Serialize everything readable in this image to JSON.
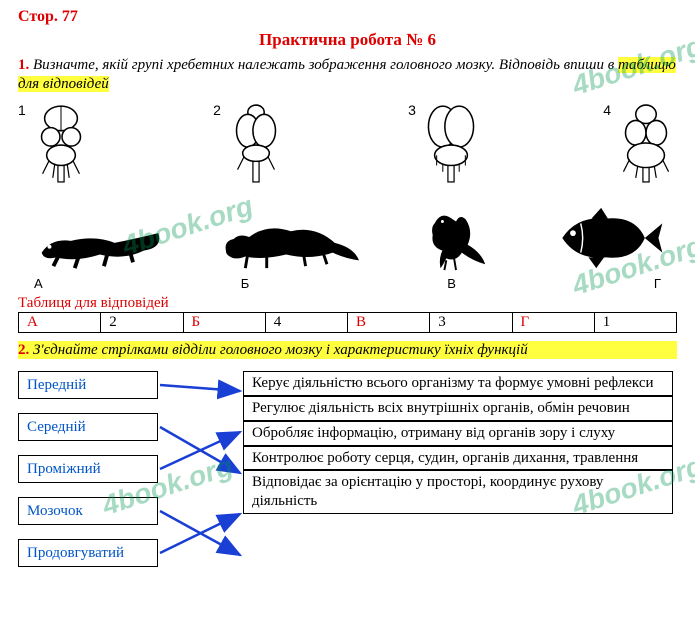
{
  "page_label": "Стор. 77",
  "title": "Практична робота № 6",
  "task1": {
    "num": "1.",
    "text_before": "Визначте, якій групі хребетних належать зображення головного мозку. Відповідь впиши в ",
    "text_hl": "таблицю для відповідей"
  },
  "brains": [
    {
      "label": "1"
    },
    {
      "label": "2"
    },
    {
      "label": "3"
    },
    {
      "label": "4"
    }
  ],
  "animal_labels": [
    "А",
    "Б",
    "В",
    "Г"
  ],
  "table_caption": "Таблиця для відповідей",
  "answer_table": [
    {
      "letter": "А",
      "value": "2"
    },
    {
      "letter": "Б",
      "value": "4"
    },
    {
      "letter": "В",
      "value": "3"
    },
    {
      "letter": "Г",
      "value": "1"
    }
  ],
  "task2": {
    "num": "2.",
    "text": "З'єднайте стрілками відділи головного мозку і характеристику їхніх функцій"
  },
  "left_items": [
    "Передній",
    "Середній",
    "Проміжний",
    "Мозочок",
    "Продовгуватий"
  ],
  "right_items": [
    "Керує діяльністю всього організму та формує умовні рефлекси",
    "Регулює діяльність всіх внутрішніх органів, обмін речовин",
    "Обробляє інформацію, отриману від органів зору і слуху",
    "Контролює роботу серця, судин, органів дихання, травлення",
    "Відповідає за орієнтацію у просторі, координує рухову діяльність"
  ],
  "arrows": [
    {
      "from": 0,
      "to": 0
    },
    {
      "from": 1,
      "to": 2
    },
    {
      "from": 2,
      "to": 1
    },
    {
      "from": 3,
      "to": 4
    },
    {
      "from": 4,
      "to": 3
    }
  ],
  "watermark_text": "4book.org",
  "colors": {
    "red": "#d00000",
    "blue": "#0055c8",
    "hl": "#ffff40",
    "arrow": "#1a3fd4",
    "wm": "rgba(0,150,80,0.35)"
  }
}
